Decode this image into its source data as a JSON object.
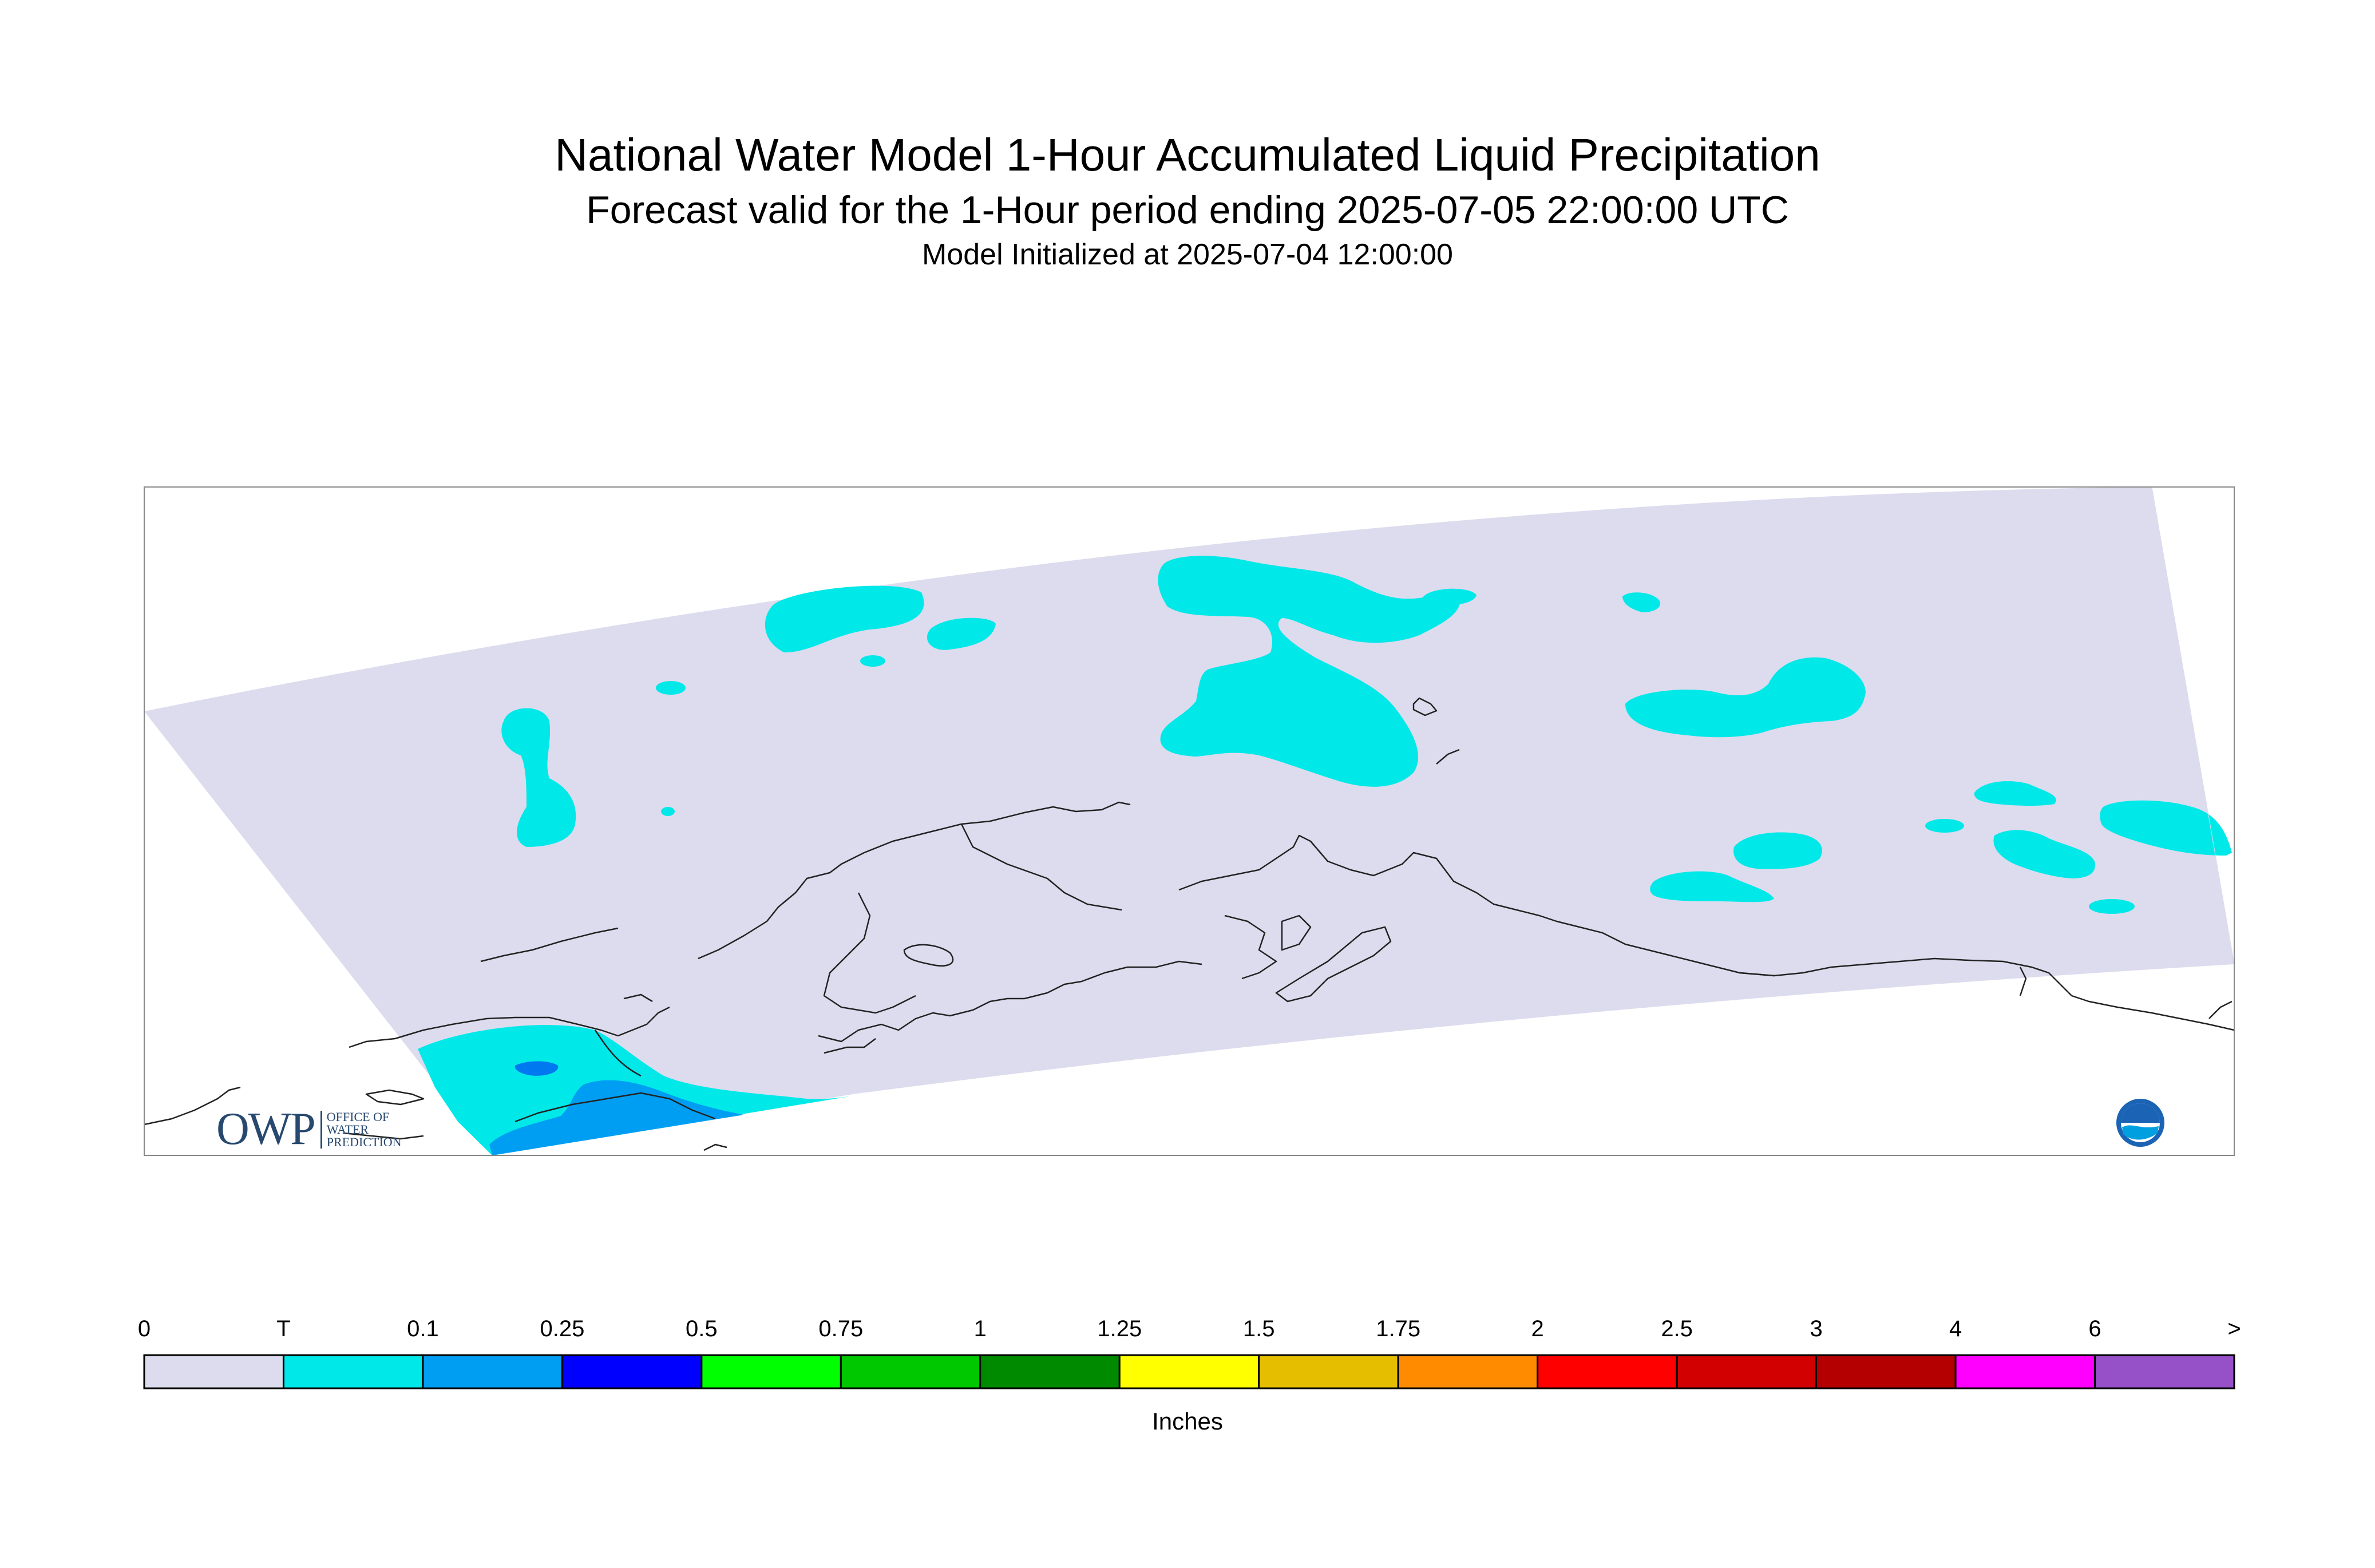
{
  "titles": {
    "main": "National Water Model 1-Hour Accumulated Liquid Precipitation",
    "valid": "Forecast valid for the 1-Hour period ending 2025-07-05 22:00:00 UTC",
    "init": "Model Initialized at 2025-07-04 12:00:00"
  },
  "legend": {
    "labels": [
      "0",
      "T",
      "0.1",
      "0.25",
      "0.5",
      "0.75",
      "1",
      "1.25",
      "1.5",
      "1.75",
      "2",
      "2.5",
      "3",
      "4",
      "6",
      ">"
    ],
    "colors": [
      "#dcdcee",
      "#00e8e8",
      "#009ef2",
      "#0000ff",
      "#00ff00",
      "#00c800",
      "#008a00",
      "#ffff00",
      "#e6be00",
      "#ff8c00",
      "#ff0000",
      "#d20000",
      "#b40000",
      "#ff00ff",
      "#9650c8"
    ],
    "units": "Inches"
  },
  "map_layers": {
    "domain_fill": "#dcdcee",
    "trace_color": "#00e8e8",
    "light_rain_color": "#009ef2",
    "moderate_rain_color": "#0078f0",
    "coastline_color": "#222222"
  },
  "logos": {
    "owp_mark": "OWP",
    "owp_lines": [
      "OFFICE OF",
      "WATER",
      "PREDICTION"
    ],
    "noaa_text": "NOAA"
  }
}
